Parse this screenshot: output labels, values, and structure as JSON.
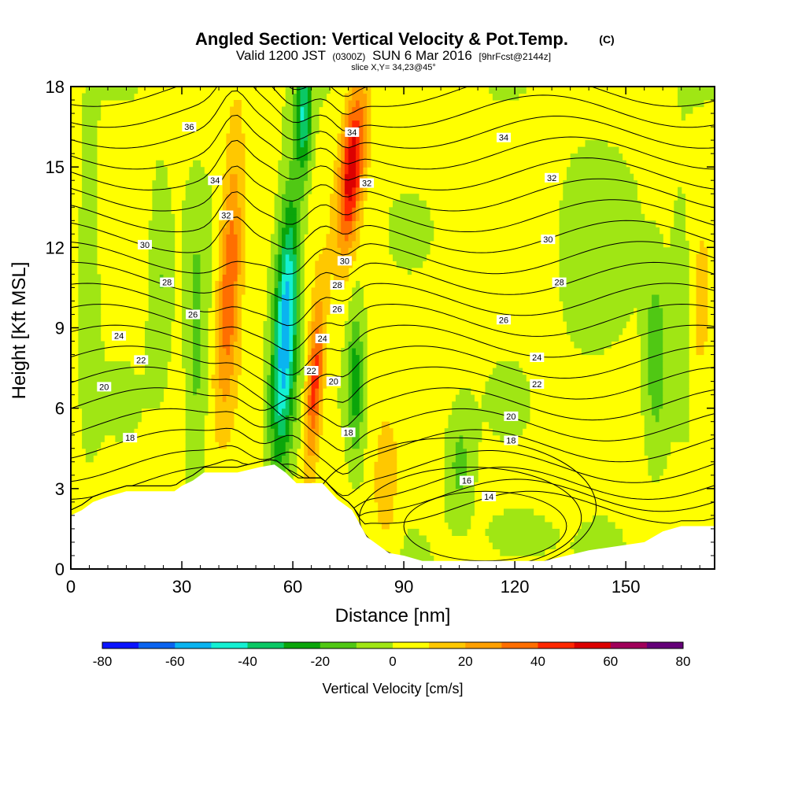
{
  "title": {
    "main": "Angled Section: Vertical Velocity & Pot.Temp.",
    "copyright": "(C)",
    "valid_prefix": "Valid 1200 JST",
    "valid_utc": "(0300Z)",
    "valid_date": "SUN 6 Mar 2016",
    "forecast": "[9hrFcst@2144z]",
    "slice": "slice X,Y= 34,23@45°"
  },
  "chart_data": {
    "type": "heatmap",
    "xlabel": "Distance [nm]",
    "ylabel": "Height [Kft MSL]",
    "xlim": [
      0,
      174
    ],
    "ylim": [
      0,
      18
    ],
    "x_ticks": [
      0,
      30,
      60,
      90,
      120,
      150
    ],
    "y_ticks": [
      0,
      3,
      6,
      9,
      12,
      15,
      18
    ],
    "colorbar": {
      "label": "Vertical Velocity [cm/s]",
      "ticks": [
        -80,
        -60,
        -40,
        -20,
        0,
        20,
        40,
        60,
        80
      ],
      "bins": [
        -80,
        -70,
        -60,
        -50,
        -40,
        -30,
        -20,
        -10,
        0,
        10,
        20,
        30,
        40,
        50,
        60,
        70,
        80
      ],
      "colors": [
        "#0a14ff",
        "#0a64f0",
        "#0ab4f0",
        "#14f0d2",
        "#0ac864",
        "#0aa50a",
        "#50c814",
        "#a0e614",
        "#ffff00",
        "#ffc800",
        "#ffa000",
        "#ff6e00",
        "#ff2800",
        "#dc0000",
        "#a0005a",
        "#640078"
      ]
    },
    "terrain": [
      [
        0,
        2
      ],
      [
        3,
        2.2
      ],
      [
        6,
        2.5
      ],
      [
        10,
        2.7
      ],
      [
        15,
        2.9
      ],
      [
        28,
        2.9
      ],
      [
        30,
        3.1
      ],
      [
        33,
        3.3
      ],
      [
        36,
        3.6
      ],
      [
        45,
        3.6
      ],
      [
        51,
        3.8
      ],
      [
        55,
        3.9
      ],
      [
        58,
        3.6
      ],
      [
        61,
        3.2
      ],
      [
        68,
        3.2
      ],
      [
        72,
        2.6
      ],
      [
        76,
        2.2
      ],
      [
        80,
        1.2
      ],
      [
        83,
        0.9
      ],
      [
        86,
        0.6
      ],
      [
        90,
        0.5
      ],
      [
        95,
        0.3
      ],
      [
        120,
        0.3
      ],
      [
        128,
        0.3
      ],
      [
        140,
        0.7
      ],
      [
        150,
        0.9
      ],
      [
        155,
        1.0
      ],
      [
        160,
        1.4
      ],
      [
        165,
        1.6
      ],
      [
        174,
        1.6
      ]
    ],
    "theta_contours": [
      14,
      16,
      18,
      20,
      22,
      24,
      26,
      28,
      30,
      32,
      34,
      36
    ],
    "theta_labels": [
      {
        "text": "36",
        "x": 32,
        "y": 16.5
      },
      {
        "text": "34",
        "x": 39,
        "y": 14.5
      },
      {
        "text": "32",
        "x": 42,
        "y": 13.2
      },
      {
        "text": "30",
        "x": 20,
        "y": 12.1
      },
      {
        "text": "28",
        "x": 26,
        "y": 10.7
      },
      {
        "text": "26",
        "x": 33,
        "y": 9.5
      },
      {
        "text": "24",
        "x": 13,
        "y": 8.7
      },
      {
        "text": "22",
        "x": 19,
        "y": 7.8
      },
      {
        "text": "20",
        "x": 9,
        "y": 6.8
      },
      {
        "text": "18",
        "x": 16,
        "y": 4.9
      },
      {
        "text": "34",
        "x": 76,
        "y": 16.3
      },
      {
        "text": "32",
        "x": 80,
        "y": 14.4
      },
      {
        "text": "30",
        "x": 74,
        "y": 11.5
      },
      {
        "text": "28",
        "x": 72,
        "y": 10.6
      },
      {
        "text": "26",
        "x": 72,
        "y": 9.7
      },
      {
        "text": "24",
        "x": 68,
        "y": 8.6
      },
      {
        "text": "22",
        "x": 65,
        "y": 7.4
      },
      {
        "text": "20",
        "x": 71,
        "y": 7
      },
      {
        "text": "18",
        "x": 75,
        "y": 5.1
      },
      {
        "text": "34",
        "x": 117,
        "y": 16.1
      },
      {
        "text": "32",
        "x": 130,
        "y": 14.6
      },
      {
        "text": "30",
        "x": 129,
        "y": 12.3
      },
      {
        "text": "28",
        "x": 132,
        "y": 10.7
      },
      {
        "text": "26",
        "x": 117,
        "y": 9.3
      },
      {
        "text": "24",
        "x": 126,
        "y": 7.9
      },
      {
        "text": "22",
        "x": 126,
        "y": 6.9
      },
      {
        "text": "20",
        "x": 119,
        "y": 5.7
      },
      {
        "text": "18",
        "x": 119,
        "y": 4.8
      },
      {
        "text": "16",
        "x": 107,
        "y": 3.3
      },
      {
        "text": "14",
        "x": 113,
        "y": 2.7
      }
    ]
  }
}
